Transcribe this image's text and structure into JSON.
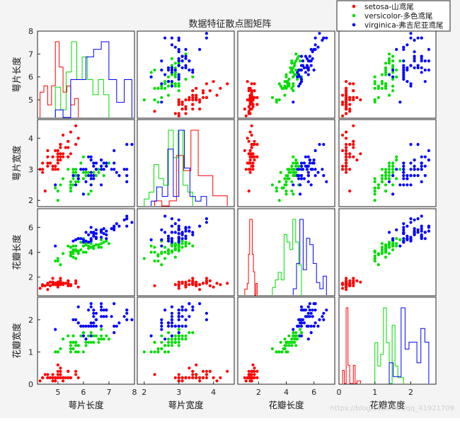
{
  "chart_data": {
    "type": "scatter",
    "title": "数据特征散点图矩阵",
    "variables": [
      "萼片长度",
      "萼片宽度",
      "花瓣长度",
      "花瓣宽度"
    ],
    "ranges": [
      [
        4.2,
        8.0
      ],
      [
        1.8,
        4.6
      ],
      [
        0.5,
        7.5
      ],
      [
        0,
        2.7
      ]
    ],
    "ticks": [
      [
        5,
        6,
        7,
        8
      ],
      [
        2,
        3,
        4
      ],
      [
        2,
        4,
        6
      ],
      [
        0,
        1,
        2
      ]
    ],
    "colors": {
      "setosa": "#ff0000",
      "versicolor": "#00dd00",
      "virginica": "#0000ff"
    },
    "legend_position": "top-right",
    "grid": false,
    "series": [
      {
        "name": "setosa-山鸢尾",
        "key": "setosa",
        "data": [
          [
            5.1,
            3.5,
            1.4,
            0.2
          ],
          [
            4.9,
            3.0,
            1.4,
            0.2
          ],
          [
            4.7,
            3.2,
            1.3,
            0.2
          ],
          [
            4.6,
            3.1,
            1.5,
            0.2
          ],
          [
            5.0,
            3.6,
            1.4,
            0.2
          ],
          [
            5.4,
            3.9,
            1.7,
            0.4
          ],
          [
            4.6,
            3.4,
            1.4,
            0.3
          ],
          [
            5.0,
            3.4,
            1.5,
            0.2
          ],
          [
            4.4,
            2.9,
            1.4,
            0.2
          ],
          [
            4.9,
            3.1,
            1.5,
            0.1
          ],
          [
            5.4,
            3.7,
            1.5,
            0.2
          ],
          [
            4.8,
            3.4,
            1.6,
            0.2
          ],
          [
            4.8,
            3.0,
            1.4,
            0.1
          ],
          [
            4.3,
            3.0,
            1.1,
            0.1
          ],
          [
            5.8,
            4.0,
            1.2,
            0.2
          ],
          [
            5.7,
            4.4,
            1.5,
            0.4
          ],
          [
            5.4,
            3.9,
            1.3,
            0.4
          ],
          [
            5.1,
            3.5,
            1.4,
            0.3
          ],
          [
            5.7,
            3.8,
            1.7,
            0.3
          ],
          [
            5.1,
            3.8,
            1.5,
            0.3
          ],
          [
            5.4,
            3.4,
            1.7,
            0.2
          ],
          [
            5.1,
            3.7,
            1.5,
            0.4
          ],
          [
            4.6,
            3.6,
            1.0,
            0.2
          ],
          [
            5.1,
            3.3,
            1.7,
            0.5
          ],
          [
            4.8,
            3.4,
            1.9,
            0.2
          ],
          [
            5.0,
            3.0,
            1.6,
            0.2
          ],
          [
            5.0,
            3.4,
            1.6,
            0.4
          ],
          [
            5.2,
            3.5,
            1.5,
            0.2
          ],
          [
            5.2,
            3.4,
            1.4,
            0.2
          ],
          [
            4.7,
            3.2,
            1.6,
            0.2
          ],
          [
            4.8,
            3.1,
            1.6,
            0.2
          ],
          [
            5.4,
            3.4,
            1.5,
            0.4
          ],
          [
            5.2,
            4.1,
            1.5,
            0.1
          ],
          [
            5.5,
            4.2,
            1.4,
            0.2
          ],
          [
            4.9,
            3.1,
            1.5,
            0.2
          ],
          [
            5.0,
            3.2,
            1.2,
            0.2
          ],
          [
            5.5,
            3.5,
            1.3,
            0.2
          ],
          [
            4.9,
            3.6,
            1.4,
            0.1
          ],
          [
            4.4,
            3.0,
            1.3,
            0.2
          ],
          [
            5.1,
            3.4,
            1.5,
            0.2
          ],
          [
            5.0,
            3.5,
            1.3,
            0.3
          ],
          [
            4.5,
            2.3,
            1.3,
            0.3
          ],
          [
            4.4,
            3.2,
            1.3,
            0.2
          ],
          [
            5.0,
            3.5,
            1.6,
            0.6
          ],
          [
            5.1,
            3.8,
            1.9,
            0.4
          ],
          [
            4.8,
            3.0,
            1.4,
            0.3
          ],
          [
            5.1,
            3.8,
            1.6,
            0.2
          ],
          [
            4.6,
            3.2,
            1.4,
            0.2
          ],
          [
            5.3,
            3.7,
            1.5,
            0.2
          ],
          [
            5.0,
            3.3,
            1.4,
            0.2
          ]
        ]
      },
      {
        "name": "versicolor-多色鸢尾",
        "key": "versicolor",
        "data": [
          [
            7.0,
            3.2,
            4.7,
            1.4
          ],
          [
            6.4,
            3.2,
            4.5,
            1.5
          ],
          [
            6.9,
            3.1,
            4.9,
            1.5
          ],
          [
            5.5,
            2.3,
            4.0,
            1.3
          ],
          [
            6.5,
            2.8,
            4.6,
            1.5
          ],
          [
            5.7,
            2.8,
            4.5,
            1.3
          ],
          [
            6.3,
            3.3,
            4.7,
            1.6
          ],
          [
            4.9,
            2.4,
            3.3,
            1.0
          ],
          [
            6.6,
            2.9,
            4.6,
            1.3
          ],
          [
            5.2,
            2.7,
            3.9,
            1.4
          ],
          [
            5.0,
            2.0,
            3.5,
            1.0
          ],
          [
            5.9,
            3.0,
            4.2,
            1.5
          ],
          [
            6.0,
            2.2,
            4.0,
            1.0
          ],
          [
            6.1,
            2.9,
            4.7,
            1.4
          ],
          [
            5.6,
            2.9,
            3.6,
            1.3
          ],
          [
            6.7,
            3.1,
            4.4,
            1.4
          ],
          [
            5.6,
            3.0,
            4.5,
            1.5
          ],
          [
            5.8,
            2.7,
            4.1,
            1.0
          ],
          [
            6.2,
            2.2,
            4.5,
            1.5
          ],
          [
            5.6,
            2.5,
            3.9,
            1.1
          ],
          [
            5.9,
            3.2,
            4.8,
            1.8
          ],
          [
            6.1,
            2.8,
            4.0,
            1.3
          ],
          [
            6.3,
            2.5,
            4.9,
            1.5
          ],
          [
            6.1,
            2.8,
            4.7,
            1.2
          ],
          [
            6.4,
            2.9,
            4.3,
            1.3
          ],
          [
            6.6,
            3.0,
            4.4,
            1.4
          ],
          [
            6.8,
            2.8,
            4.8,
            1.4
          ],
          [
            6.7,
            3.0,
            5.0,
            1.7
          ],
          [
            6.0,
            2.9,
            4.5,
            1.5
          ],
          [
            5.7,
            2.6,
            3.5,
            1.0
          ],
          [
            5.5,
            2.4,
            3.8,
            1.1
          ],
          [
            5.5,
            2.4,
            3.7,
            1.0
          ],
          [
            5.8,
            2.7,
            3.9,
            1.2
          ],
          [
            6.0,
            2.7,
            5.1,
            1.6
          ],
          [
            5.4,
            3.0,
            4.5,
            1.5
          ],
          [
            6.0,
            3.4,
            4.5,
            1.6
          ],
          [
            6.7,
            3.1,
            4.7,
            1.5
          ],
          [
            6.3,
            2.3,
            4.4,
            1.3
          ],
          [
            5.6,
            3.0,
            4.1,
            1.3
          ],
          [
            5.5,
            2.5,
            4.0,
            1.3
          ],
          [
            5.5,
            2.6,
            4.4,
            1.2
          ],
          [
            6.1,
            3.0,
            4.6,
            1.4
          ],
          [
            5.8,
            2.6,
            4.0,
            1.2
          ],
          [
            5.0,
            2.3,
            3.3,
            1.0
          ],
          [
            5.6,
            2.7,
            4.2,
            1.3
          ],
          [
            5.7,
            3.0,
            4.2,
            1.2
          ],
          [
            5.7,
            2.9,
            4.2,
            1.3
          ],
          [
            6.2,
            2.9,
            4.3,
            1.3
          ],
          [
            5.1,
            2.5,
            3.0,
            1.1
          ],
          [
            5.7,
            2.8,
            4.1,
            1.3
          ]
        ]
      },
      {
        "name": "virginica-弗吉尼亚鸢尾",
        "key": "virginica",
        "data": [
          [
            6.3,
            3.3,
            6.0,
            2.5
          ],
          [
            5.8,
            2.7,
            5.1,
            1.9
          ],
          [
            7.1,
            3.0,
            5.9,
            2.1
          ],
          [
            6.3,
            2.9,
            5.6,
            1.8
          ],
          [
            6.5,
            3.0,
            5.8,
            2.2
          ],
          [
            7.6,
            3.0,
            6.6,
            2.1
          ],
          [
            4.9,
            2.5,
            4.5,
            1.7
          ],
          [
            7.3,
            2.9,
            6.3,
            1.8
          ],
          [
            6.7,
            2.5,
            5.8,
            1.8
          ],
          [
            7.2,
            3.6,
            6.1,
            2.5
          ],
          [
            6.5,
            3.2,
            5.1,
            2.0
          ],
          [
            6.4,
            2.7,
            5.3,
            1.9
          ],
          [
            6.8,
            3.0,
            5.5,
            2.1
          ],
          [
            5.7,
            2.5,
            5.0,
            2.0
          ],
          [
            5.8,
            2.8,
            5.1,
            2.4
          ],
          [
            6.4,
            3.2,
            5.3,
            2.3
          ],
          [
            6.5,
            3.0,
            5.5,
            1.8
          ],
          [
            7.7,
            3.8,
            6.7,
            2.2
          ],
          [
            7.7,
            2.6,
            6.9,
            2.3
          ],
          [
            6.0,
            2.2,
            5.0,
            1.5
          ],
          [
            6.9,
            3.2,
            5.7,
            2.3
          ],
          [
            5.6,
            2.8,
            4.9,
            2.0
          ],
          [
            7.7,
            2.8,
            6.7,
            2.0
          ],
          [
            6.3,
            2.7,
            4.9,
            1.8
          ],
          [
            6.7,
            3.3,
            5.7,
            2.1
          ],
          [
            7.2,
            3.2,
            6.0,
            1.8
          ],
          [
            6.2,
            2.8,
            4.8,
            1.8
          ],
          [
            6.1,
            3.0,
            4.9,
            1.8
          ],
          [
            6.4,
            2.8,
            5.6,
            2.1
          ],
          [
            7.2,
            3.0,
            5.8,
            1.6
          ],
          [
            7.4,
            2.8,
            6.1,
            1.9
          ],
          [
            7.9,
            3.8,
            6.4,
            2.0
          ],
          [
            6.4,
            2.8,
            5.6,
            2.2
          ],
          [
            6.3,
            2.8,
            5.1,
            1.5
          ],
          [
            6.1,
            2.6,
            5.6,
            1.4
          ],
          [
            7.7,
            3.0,
            6.1,
            2.3
          ],
          [
            6.3,
            3.4,
            5.6,
            2.4
          ],
          [
            6.4,
            3.1,
            5.5,
            1.8
          ],
          [
            6.0,
            3.0,
            4.8,
            1.8
          ],
          [
            6.9,
            3.1,
            5.4,
            2.1
          ],
          [
            6.7,
            3.1,
            5.6,
            2.4
          ],
          [
            6.9,
            3.1,
            5.1,
            2.3
          ],
          [
            5.8,
            2.7,
            5.1,
            1.9
          ],
          [
            6.8,
            3.2,
            5.9,
            2.3
          ],
          [
            6.7,
            3.3,
            5.7,
            2.5
          ],
          [
            6.7,
            3.0,
            5.2,
            2.3
          ],
          [
            6.3,
            2.5,
            5.0,
            1.9
          ],
          [
            6.5,
            3.0,
            5.2,
            2.0
          ],
          [
            6.2,
            3.4,
            5.4,
            2.3
          ],
          [
            5.9,
            3.0,
            5.1,
            1.8
          ]
        ]
      }
    ]
  },
  "watermark": "https://blog.csdn.net/qq_41921709"
}
